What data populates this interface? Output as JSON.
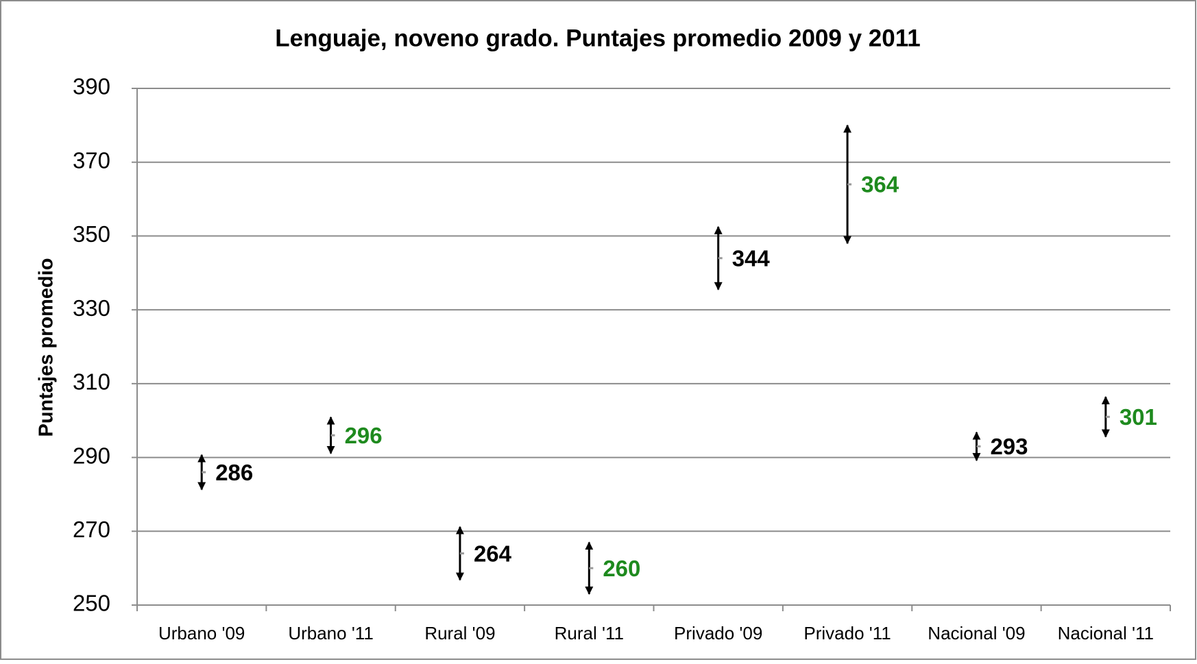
{
  "chart_data": {
    "type": "errorbar",
    "title": "Lenguaje, noveno grado. Puntajes promedio 2009 y 2011",
    "y_label": "Puntajes promedio",
    "categories": [
      "Urbano '09",
      "Urbano '11",
      "Rural '09",
      "Rural '11",
      "Privado '09",
      "Privado '11",
      "Nacional '09",
      "Nacional '11"
    ],
    "values": [
      286,
      296,
      264,
      260,
      344,
      364,
      293,
      301
    ],
    "errors": [
      4.7,
      4.9,
      7.2,
      7,
      8.5,
      16,
      3.8,
      5.4
    ],
    "label_colors": [
      "#000000",
      "#1e8a1e",
      "#000000",
      "#1e8a1e",
      "#000000",
      "#1e8a1e",
      "#000000",
      "#1e8a1e"
    ],
    "color": "#000000",
    "ylim": [
      250,
      390
    ],
    "yticks": [
      250,
      270,
      290,
      310,
      330,
      350,
      370,
      390
    ],
    "grid": true
  }
}
